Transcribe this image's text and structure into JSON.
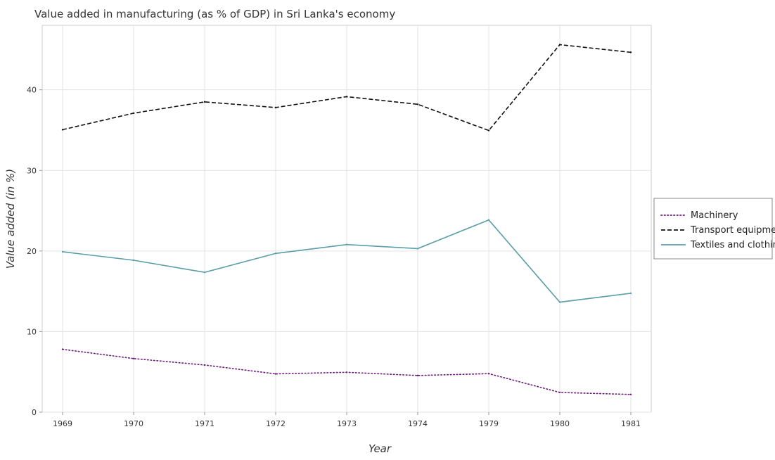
{
  "chart_data": {
    "type": "line",
    "title": "Value added in manufacturing (as % of GDP) in Sri Lanka's economy",
    "xlabel": "Year",
    "ylabel": "Value added (in %)",
    "categories": [
      "1969",
      "1970",
      "1971",
      "1972",
      "1973",
      "1974",
      "1979",
      "1980",
      "1981"
    ],
    "ylim": [
      0,
      48
    ],
    "yticks": [
      0,
      10,
      20,
      30,
      40
    ],
    "grid": true,
    "legend_position": "right",
    "series": [
      {
        "name": "Machinery",
        "color": "#6a1b78",
        "style": "dotted",
        "values": [
          7.8,
          6.65,
          5.85,
          4.75,
          4.95,
          4.55,
          4.78,
          2.45,
          2.2
        ]
      },
      {
        "name": "Transport equipments",
        "color": "#111111",
        "style": "dashed",
        "values": [
          35.05,
          37.1,
          38.5,
          37.8,
          39.15,
          38.2,
          34.95,
          45.6,
          44.65
        ]
      },
      {
        "name": "Textiles and clothing",
        "color": "#5a9ea8",
        "style": "solid",
        "values": [
          19.9,
          18.85,
          17.35,
          19.7,
          20.8,
          20.3,
          23.85,
          13.65,
          14.75
        ]
      }
    ]
  }
}
